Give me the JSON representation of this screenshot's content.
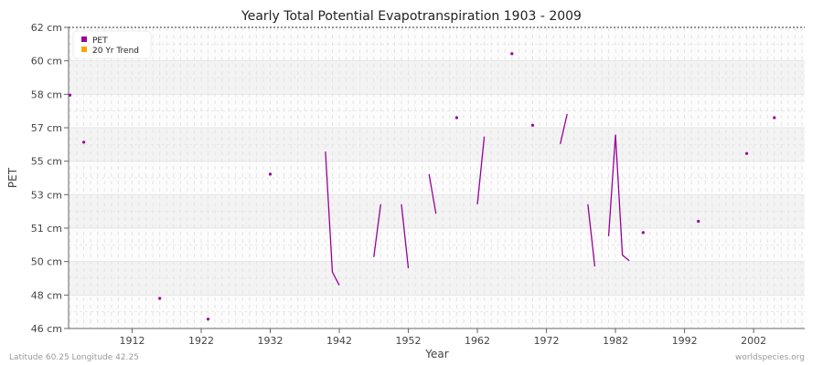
{
  "chart_data": {
    "type": "line",
    "title": "Yearly Total Potential Evapotranspiration 1903 - 2009",
    "xlabel": "Year",
    "ylabel": "PET",
    "xlim": [
      1903,
      2009
    ],
    "ylim": [
      46,
      62
    ],
    "x_ticks": [
      1912,
      1922,
      1932,
      1942,
      1952,
      1962,
      1972,
      1982,
      1992,
      2002
    ],
    "y_tick_labels": [
      "46 cm",
      "48 cm",
      "50 cm",
      "51 cm",
      "53 cm",
      "55 cm",
      "57 cm",
      "58 cm",
      "60 cm",
      "62 cm"
    ],
    "grid": true,
    "legend": {
      "placement": "top-left",
      "entries": [
        {
          "name": "PET",
          "color": "#990099"
        },
        {
          "name": "20 Yr Trend",
          "color": "#ffa500"
        }
      ]
    },
    "series": [
      {
        "name": "PET",
        "color": "#990099",
        "segments": [
          [
            [
              1903,
              58.4
            ]
          ],
          [
            [
              1905,
              55.9
            ]
          ],
          [
            [
              1916,
              47.6
            ]
          ],
          [
            [
              1923,
              46.5
            ]
          ],
          [
            [
              1932,
              54.2
            ]
          ],
          [
            [
              1940,
              55.4
            ],
            [
              1941,
              49.0
            ],
            [
              1942,
              48.3
            ]
          ],
          [
            [
              1947,
              49.8
            ],
            [
              1948,
              52.6
            ]
          ],
          [
            [
              1951,
              52.6
            ],
            [
              1952,
              49.2
            ]
          ],
          [
            [
              1955,
              54.2
            ],
            [
              1956,
              52.1
            ]
          ],
          [
            [
              1959,
              57.2
            ]
          ],
          [
            [
              1962,
              52.6
            ],
            [
              1963,
              56.2
            ]
          ],
          [
            [
              1967,
              60.6
            ]
          ],
          [
            [
              1970,
              56.8
            ]
          ],
          [
            [
              1974,
              55.8
            ],
            [
              1975,
              57.4
            ]
          ],
          [
            [
              1978,
              52.6
            ],
            [
              1979,
              49.3
            ]
          ],
          [
            [
              1981,
              50.9
            ],
            [
              1982,
              56.3
            ],
            [
              1983,
              49.9
            ],
            [
              1984,
              49.6
            ]
          ],
          [
            [
              1986,
              51.1
            ]
          ],
          [
            [
              1994,
              51.7
            ]
          ],
          [
            [
              2001,
              55.3
            ]
          ],
          [
            [
              2005,
              57.2
            ]
          ]
        ]
      }
    ]
  },
  "footer": {
    "left": "Latitude 60.25 Longitude 42.25",
    "right": "worldspecies.org"
  }
}
